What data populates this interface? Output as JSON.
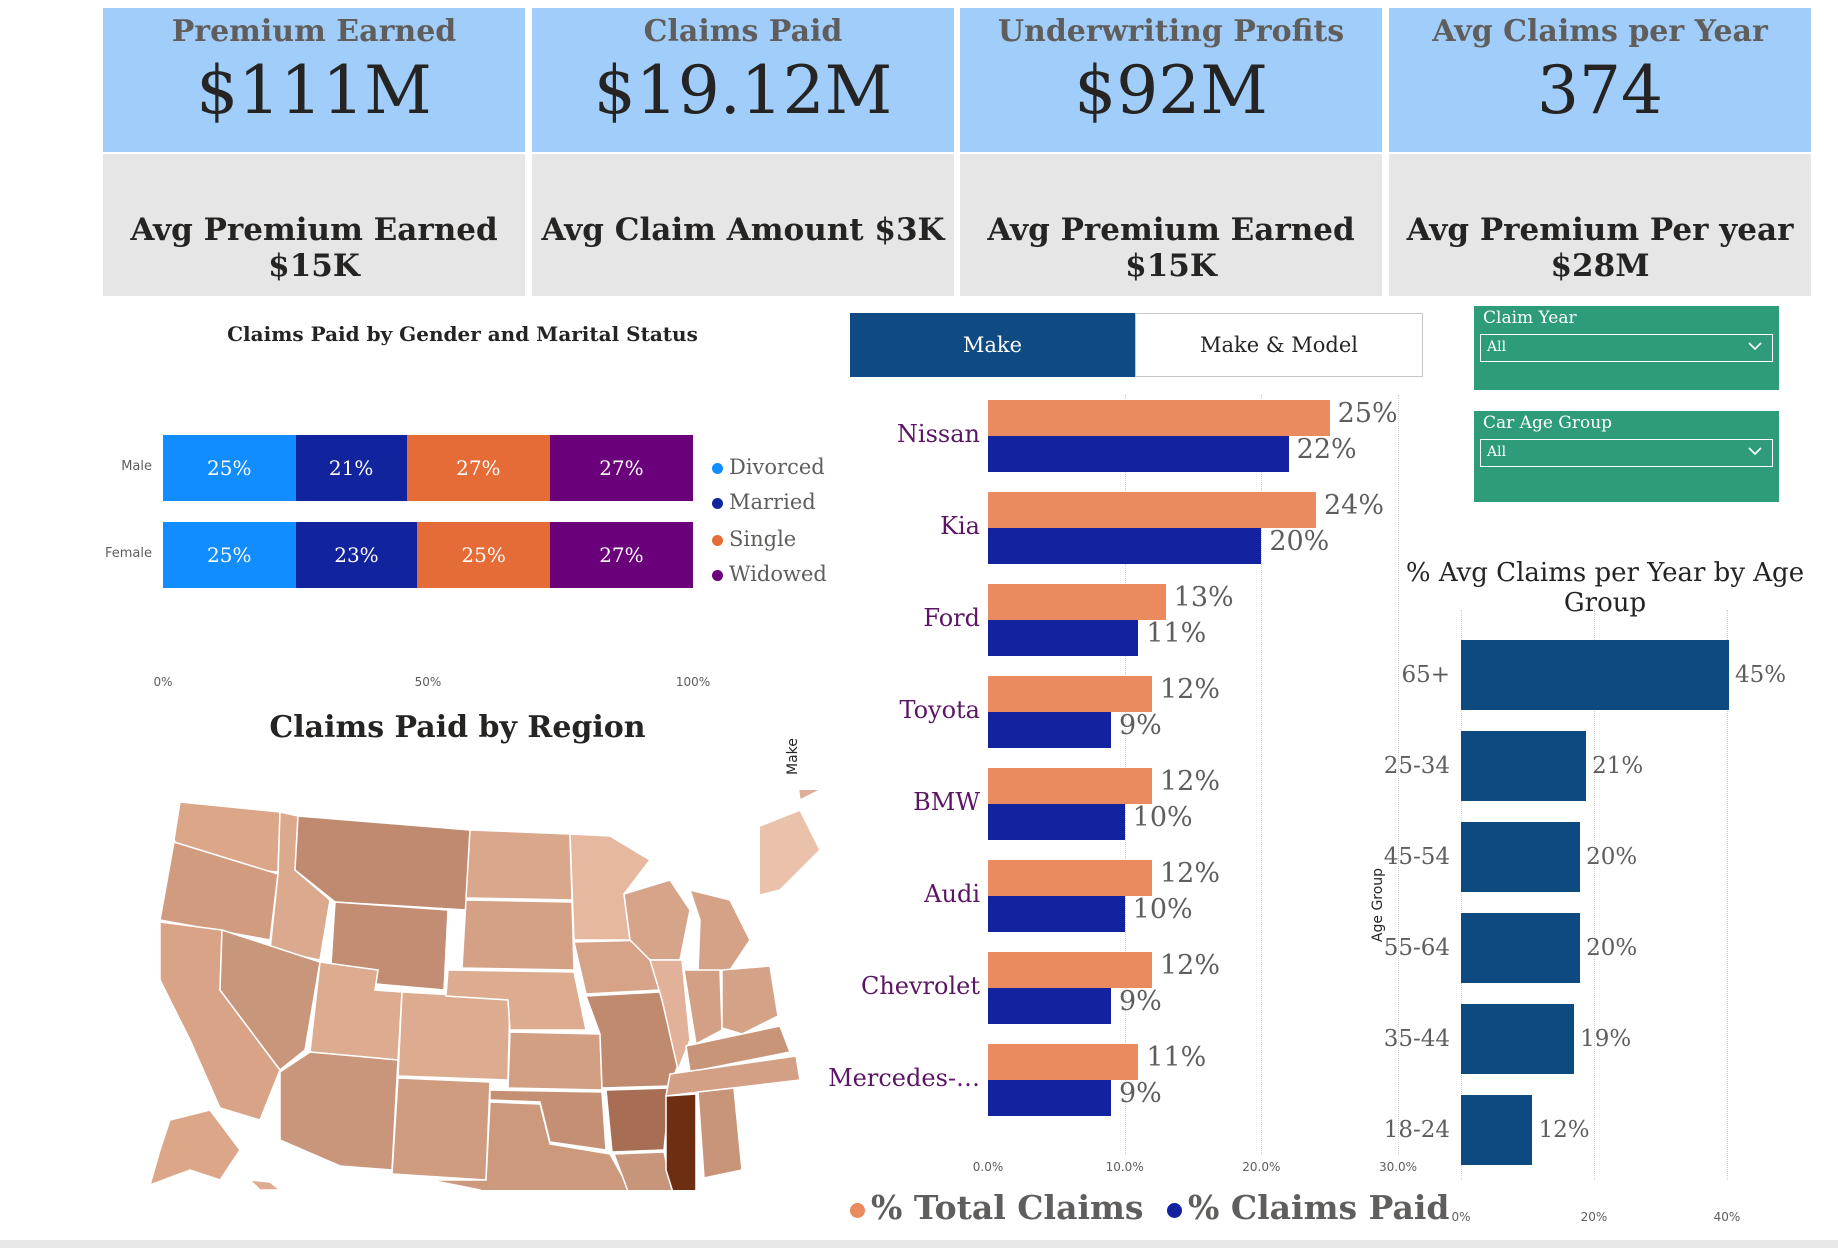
{
  "kpis": [
    {
      "title": "Premium Earned",
      "value": "$111M",
      "sub": "Avg Premium Earned $15K"
    },
    {
      "title": "Claims Paid",
      "value": "$19.12M",
      "sub": "Avg Claim Amount $3K"
    },
    {
      "title": "Underwriting Profits",
      "value": "$92M",
      "sub": "Avg Premium Earned $15K"
    },
    {
      "title": "Avg Claims per Year",
      "value": "374",
      "sub": "Avg Premium Per year $28M"
    }
  ],
  "gender_chart": {
    "title": "Claims Paid by Gender and Marital Status",
    "categories": [
      "Male",
      "Female"
    ],
    "series_names": [
      "Divorced",
      "Married",
      "Single",
      "Widowed"
    ],
    "rows": [
      {
        "label": "Male",
        "values": [
          25,
          21,
          27,
          27
        ],
        "labels": [
          "25%",
          "21%",
          "27%",
          "27%"
        ]
      },
      {
        "label": "Female",
        "values": [
          25,
          23,
          25,
          27
        ],
        "labels": [
          "25%",
          "23%",
          "25%",
          "27%"
        ]
      }
    ],
    "ticks": [
      "0%",
      "50%",
      "100%"
    ],
    "colors": [
      "#118dff",
      "#12239e",
      "#e66c37",
      "#6b007b"
    ]
  },
  "toggle": {
    "make_label": "Make",
    "make_model_label": "Make & Model"
  },
  "make_chart": {
    "axis_title": "Make",
    "categories": [
      "Nissan",
      "Kia",
      "Ford",
      "Toyota",
      "BMW",
      "Audi",
      "Chevrolet",
      "Mercedes-…"
    ],
    "total_claims": [
      25,
      24,
      13,
      12,
      12,
      12,
      12,
      11
    ],
    "claims_paid": [
      22,
      20,
      11,
      9,
      10,
      10,
      9,
      9
    ],
    "total_labels": [
      "25%",
      "24%",
      "13%",
      "12%",
      "12%",
      "12%",
      "12%",
      "11%"
    ],
    "paid_labels": [
      "22%",
      "20%",
      "11%",
      "9%",
      "10%",
      "10%",
      "9%",
      "9%"
    ],
    "ticks": [
      "0.0%",
      "10.0%",
      "20.0%",
      "30.0%"
    ],
    "xmax": 30,
    "legend": {
      "total": "% Total Claims",
      "paid": "% Claims Paid"
    },
    "colors": {
      "total": "#e98a5f",
      "paid": "#1323a0",
      "label": "#5b1564"
    }
  },
  "region_chart": {
    "title": "Claims Paid by Region"
  },
  "slicers": [
    {
      "title": "Claim Year",
      "value": "All"
    },
    {
      "title": "Car Age Group",
      "value": "All"
    }
  ],
  "age_chart": {
    "title": "% Avg Claims per Year by Age Group",
    "axis_title": "Age Group",
    "categories": [
      "65+",
      "25-34",
      "45-54",
      "55-64",
      "35-44",
      "18-24"
    ],
    "values": [
      45,
      21,
      20,
      20,
      19,
      12
    ],
    "labels": [
      "45%",
      "21%",
      "20%",
      "20%",
      "19%",
      "12%"
    ],
    "ticks": [
      "0%",
      "20%",
      "40%"
    ],
    "xmax": 45,
    "color": "#0c4a80"
  }
}
